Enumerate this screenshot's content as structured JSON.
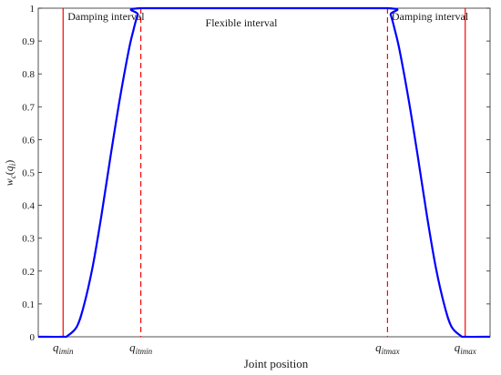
{
  "chart_data": {
    "type": "line",
    "title": "",
    "xlabel": "Joint position",
    "ylabel": {
      "w": "w",
      "c": "c",
      "q": "q",
      "i": "i"
    },
    "ylim": [
      0,
      1
    ],
    "yticks": [
      "0",
      "0.1",
      "0.2",
      "0.3",
      "0.4",
      "0.5",
      "0.6",
      "0.7",
      "0.8",
      "0.9",
      "1"
    ],
    "xlim": [
      0,
      1
    ],
    "x_markers": [
      {
        "x": 0.055,
        "style": "solid",
        "main": "q",
        "sub": "imin"
      },
      {
        "x": 0.227,
        "style": "dashed",
        "main": "q",
        "sub": "itmin"
      },
      {
        "x": 0.773,
        "style": "dashed",
        "main": "q",
        "sub": "itmax"
      },
      {
        "x": 0.945,
        "style": "solid",
        "main": "q",
        "sub": "imax"
      }
    ],
    "annotations": [
      {
        "text": "Damping interval",
        "x": 0.065,
        "y": 0.975
      },
      {
        "text": "Flexible interval",
        "x": 0.37,
        "y": 0.955
      },
      {
        "text": "Damping interval",
        "x": 0.782,
        "y": 0.975
      }
    ],
    "series": [
      {
        "color": "#0000ff",
        "x": [
          0,
          0.055,
          0.065,
          0.085,
          0.1,
          0.12,
          0.14,
          0.16,
          0.18,
          0.2,
          0.21,
          0.22,
          0.227,
          0.5,
          0.773,
          0.78,
          0.79,
          0.8,
          0.82,
          0.84,
          0.86,
          0.88,
          0.9,
          0.915,
          0.935,
          0.945,
          1
        ],
        "y": [
          0,
          0,
          0.003,
          0.03,
          0.09,
          0.21,
          0.37,
          0.55,
          0.72,
          0.87,
          0.93,
          0.98,
          1.0,
          1.0,
          1.0,
          0.98,
          0.93,
          0.87,
          0.72,
          0.55,
          0.37,
          0.21,
          0.09,
          0.03,
          0.003,
          0,
          0
        ]
      }
    ],
    "marker_color": "#ff0000",
    "grid": false
  }
}
